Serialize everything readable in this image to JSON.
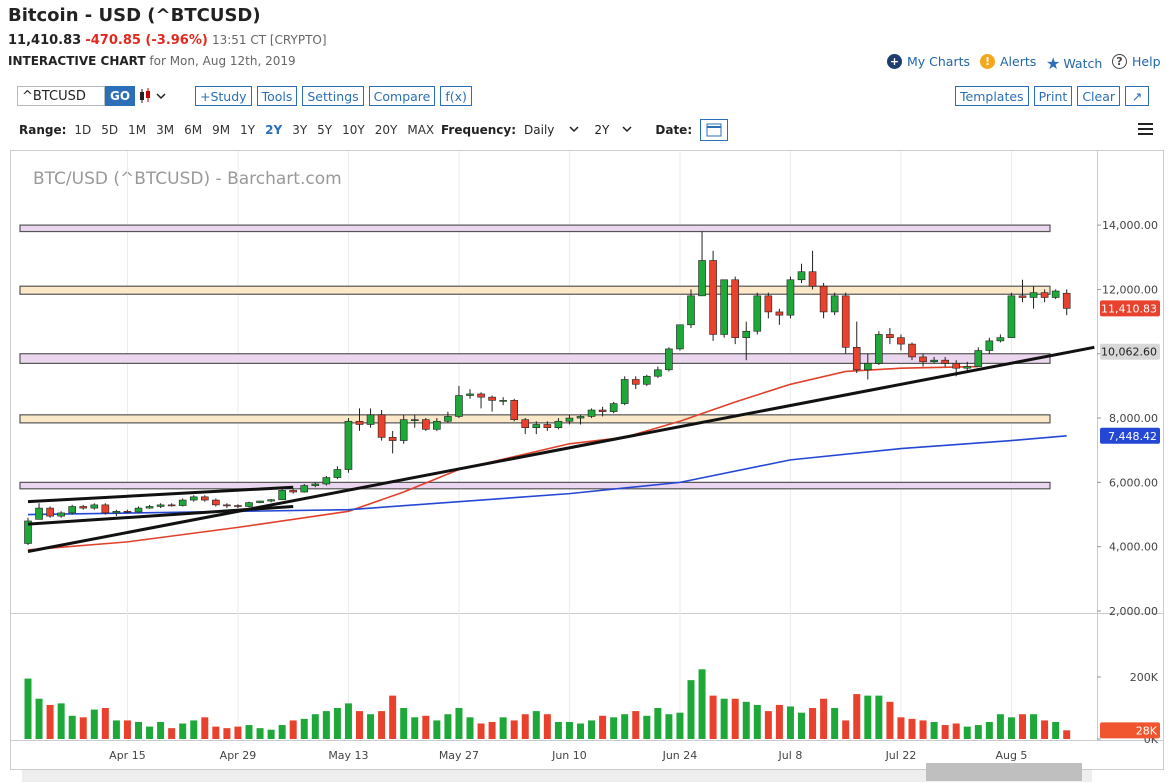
{
  "header": {
    "title": "Bitcoin - USD (^BTCUSD)",
    "price": "11,410.83",
    "change": "-470.85 (-3.96%)",
    "time": "13:51 CT [CRYPTO]",
    "chart_label": "INTERACTIVE CHART",
    "date_text": "for Mon, Aug 12th, 2019",
    "links": [
      "My Charts",
      "Alerts",
      "Watch",
      "Help"
    ]
  },
  "toolbar": {
    "symbol": "^BTCUSD",
    "go": "GO",
    "buttons": [
      "+Study",
      "Tools",
      "Settings",
      "Compare",
      "f(x)"
    ],
    "right_buttons": [
      "Templates",
      "Print",
      "Clear"
    ]
  },
  "range_bar": {
    "range_label": "Range:",
    "ranges": [
      "1D",
      "5D",
      "1M",
      "3M",
      "6M",
      "9M",
      "1Y",
      "2Y",
      "3Y",
      "5Y",
      "10Y",
      "20Y",
      "MAX"
    ],
    "selected_range": 7,
    "frequency_label": "Frequency:",
    "frequency": "Daily",
    "period": "2Y",
    "date_label": "Date:"
  },
  "chart_data": {
    "type": "candlestick",
    "title": "BTC/USD (^BTCUSD) - Barchart.com",
    "categories": [
      null,
      null,
      null,
      null,
      null,
      null,
      null,
      null,
      null,
      "Apr 15",
      null,
      null,
      null,
      null,
      null,
      null,
      null,
      null,
      null,
      "Apr 29",
      null,
      null,
      null,
      null,
      null,
      null,
      null,
      null,
      null,
      "May 13",
      null,
      null,
      null,
      null,
      null,
      null,
      null,
      null,
      null,
      "May 27",
      null,
      null,
      null,
      null,
      null,
      null,
      null,
      null,
      null,
      "Jun 10",
      null,
      null,
      null,
      null,
      null,
      null,
      null,
      null,
      null,
      "Jun 24",
      null,
      null,
      null,
      null,
      null,
      null,
      null,
      null,
      null,
      "Jul 8",
      null,
      null,
      null,
      null,
      null,
      null,
      null,
      null,
      null,
      "Jul 22",
      null,
      null,
      null,
      null,
      null,
      null,
      null,
      null,
      null,
      "Aug 5",
      null,
      null,
      null,
      null,
      null
    ],
    "ohlc": [
      [
        4100,
        4900,
        4050,
        4800
      ],
      [
        4850,
        5350,
        4850,
        5200
      ],
      [
        5200,
        5250,
        4900,
        4950
      ],
      [
        4950,
        5100,
        4900,
        5050
      ],
      [
        5050,
        5300,
        5000,
        5250
      ],
      [
        5250,
        5300,
        5150,
        5200
      ],
      [
        5200,
        5350,
        5150,
        5300
      ],
      [
        5300,
        5350,
        5000,
        5050
      ],
      [
        5050,
        5150,
        4950,
        5100
      ],
      [
        5100,
        5150,
        5050,
        5080
      ],
      [
        5080,
        5250,
        5050,
        5200
      ],
      [
        5200,
        5300,
        5180,
        5250
      ],
      [
        5250,
        5350,
        5200,
        5300
      ],
      [
        5300,
        5350,
        5250,
        5280
      ],
      [
        5280,
        5500,
        5250,
        5450
      ],
      [
        5450,
        5600,
        5400,
        5550
      ],
      [
        5550,
        5600,
        5400,
        5450
      ],
      [
        5450,
        5500,
        5250,
        5300
      ],
      [
        5300,
        5350,
        5200,
        5280
      ],
      [
        5280,
        5320,
        5200,
        5250
      ],
      [
        5250,
        5400,
        5230,
        5370
      ],
      [
        5370,
        5430,
        5350,
        5420
      ],
      [
        5420,
        5480,
        5380,
        5460
      ],
      [
        5460,
        5800,
        5450,
        5750
      ],
      [
        5750,
        5800,
        5650,
        5700
      ],
      [
        5700,
        5950,
        5680,
        5900
      ],
      [
        5900,
        6000,
        5850,
        5950
      ],
      [
        5950,
        6200,
        5900,
        6150
      ],
      [
        6150,
        6500,
        6100,
        6400
      ],
      [
        6400,
        8000,
        6300,
        7900
      ],
      [
        7900,
        8300,
        7600,
        7800
      ],
      [
        7800,
        8300,
        7700,
        8100
      ],
      [
        8100,
        8250,
        7300,
        7400
      ],
      [
        7400,
        7600,
        6900,
        7300
      ],
      [
        7300,
        8100,
        7200,
        7950
      ],
      [
        7950,
        8100,
        7700,
        7950
      ],
      [
        7950,
        8000,
        7600,
        7650
      ],
      [
        7650,
        8000,
        7600,
        7900
      ],
      [
        7900,
        8200,
        7850,
        8050
      ],
      [
        8050,
        9000,
        8000,
        8700
      ],
      [
        8700,
        8900,
        8600,
        8750
      ],
      [
        8750,
        8800,
        8300,
        8650
      ],
      [
        8650,
        8700,
        8200,
        8550
      ],
      [
        8550,
        8650,
        8400,
        8550
      ],
      [
        8550,
        8600,
        7900,
        7950
      ],
      [
        7950,
        8000,
        7500,
        7700
      ],
      [
        7700,
        7900,
        7500,
        7800
      ],
      [
        7800,
        7900,
        7600,
        7700
      ],
      [
        7700,
        8000,
        7650,
        7900
      ],
      [
        7900,
        8100,
        7800,
        8000
      ],
      [
        8000,
        8100,
        7800,
        8050
      ],
      [
        8050,
        8300,
        8000,
        8250
      ],
      [
        8250,
        8350,
        8050,
        8200
      ],
      [
        8200,
        8500,
        8150,
        8450
      ],
      [
        8450,
        9300,
        8400,
        9200
      ],
      [
        9200,
        9300,
        8900,
        9050
      ],
      [
        9050,
        9350,
        9000,
        9300
      ],
      [
        9300,
        9600,
        9250,
        9500
      ],
      [
        9500,
        10200,
        9450,
        10150
      ],
      [
        10150,
        10900,
        10100,
        10900
      ],
      [
        10900,
        12000,
        10800,
        11800
      ],
      [
        11800,
        13800,
        11800,
        12900
      ],
      [
        12900,
        13200,
        10400,
        10600
      ],
      [
        10600,
        12300,
        10500,
        12300
      ],
      [
        12300,
        12400,
        10300,
        10500
      ],
      [
        10500,
        11000,
        9800,
        10700
      ],
      [
        10700,
        11900,
        10600,
        11800
      ],
      [
        11800,
        11900,
        11100,
        11300
      ],
      [
        11300,
        11400,
        10900,
        11200
      ],
      [
        11200,
        12400,
        11100,
        12300
      ],
      [
        12300,
        12800,
        12200,
        12550
      ],
      [
        12550,
        13200,
        12000,
        12100
      ],
      [
        12100,
        12200,
        11100,
        11300
      ],
      [
        11300,
        11900,
        11200,
        11800
      ],
      [
        11800,
        11900,
        10000,
        10200
      ],
      [
        10200,
        11000,
        9400,
        9500
      ],
      [
        9500,
        10000,
        9200,
        9700
      ],
      [
        9700,
        10700,
        9650,
        10600
      ],
      [
        10600,
        10800,
        10300,
        10500
      ],
      [
        10500,
        10600,
        10100,
        10300
      ],
      [
        10300,
        10350,
        9800,
        9900
      ],
      [
        9900,
        10000,
        9600,
        9750
      ],
      [
        9750,
        9900,
        9700,
        9800
      ],
      [
        9800,
        9900,
        9600,
        9700
      ],
      [
        9700,
        9800,
        9300,
        9550
      ],
      [
        9550,
        9750,
        9450,
        9600
      ],
      [
        9600,
        10200,
        9600,
        10100
      ],
      [
        10100,
        10500,
        10000,
        10400
      ],
      [
        10400,
        10600,
        10350,
        10500
      ],
      [
        10500,
        11900,
        10500,
        11800
      ],
      [
        11800,
        12300,
        11600,
        11750
      ],
      [
        11750,
        12100,
        11400,
        11900
      ],
      [
        11900,
        12000,
        11600,
        11750
      ],
      [
        11750,
        12000,
        11700,
        11950
      ],
      [
        11881.68,
        12000,
        11200,
        11410.83
      ]
    ],
    "up_color": "#1fa83a",
    "down_color": "#e8412d",
    "ylim": [
      2000,
      16180
    ],
    "yticks": [
      {
        "value": 2000,
        "label": "2,000.00"
      },
      {
        "value": 4000,
        "label": "4,000.00"
      },
      {
        "value": 6000,
        "label": "6,000.00"
      },
      {
        "value": 8000,
        "label": "8,000.00"
      },
      {
        "value": 10000,
        "label": "10,000.00"
      },
      {
        "value": 12000,
        "label": "12,000.00"
      },
      {
        "value": 14000,
        "label": "14,000.00"
      }
    ],
    "zones": [
      {
        "low": 13800,
        "high": 14000,
        "color": "#ead6ee"
      },
      {
        "low": 11850,
        "high": 12100,
        "color": "#fbe8c8"
      },
      {
        "low": 9700,
        "high": 10000,
        "color": "#ead6ee"
      },
      {
        "low": 7850,
        "high": 8100,
        "color": "#fbe8c8"
      },
      {
        "low": 5800,
        "high": 6000,
        "color": "#ead6ee"
      }
    ],
    "lines": [
      {
        "color": "#e0412a",
        "x": [
          0,
          9,
          19,
          29,
          34,
          39,
          49,
          54,
          59,
          64,
          69,
          74,
          79,
          86
        ],
        "values": [
          3900,
          4150,
          4600,
          5100,
          5700,
          6400,
          7200,
          7400,
          7900,
          8500,
          9050,
          9450,
          9550,
          9600
        ]
      },
      {
        "color": "#2447d6",
        "x": [
          0,
          29,
          49,
          59,
          69,
          79,
          89,
          94
        ],
        "values": [
          5000,
          5150,
          5650,
          6000,
          6700,
          7050,
          7300,
          7448.42
        ]
      }
    ],
    "trendlines": [
      {
        "color": "#111111",
        "x": [
          0,
          96.5
        ],
        "values": [
          3850,
          10200
        ]
      },
      {
        "color": "#111111",
        "x": [
          0,
          24
        ],
        "values": [
          4700,
          5250
        ]
      },
      {
        "color": "#111111",
        "x": [
          0,
          24
        ],
        "values": [
          5400,
          5850
        ]
      }
    ],
    "badges": [
      {
        "value": 11410.83,
        "label": "11,410.83",
        "color": "#e8412d"
      },
      {
        "value": 10062.6,
        "label": "10,062.60",
        "color": "#d8d8d8"
      },
      {
        "value": 7448.42,
        "label": "7,448.42",
        "color": "#2447d6"
      }
    ],
    "volume": {
      "values": [
        195,
        130,
        110,
        115,
        75,
        70,
        95,
        100,
        60,
        60,
        55,
        40,
        55,
        35,
        50,
        60,
        70,
        40,
        35,
        40,
        45,
        35,
        30,
        45,
        60,
        65,
        80,
        90,
        100,
        115,
        90,
        80,
        90,
        140,
        100,
        70,
        75,
        60,
        80,
        100,
        70,
        50,
        55,
        70,
        60,
        80,
        90,
        80,
        55,
        55,
        50,
        60,
        75,
        70,
        80,
        90,
        75,
        100,
        80,
        85,
        190,
        225,
        140,
        130,
        130,
        120,
        110,
        90,
        110,
        105,
        85,
        100,
        130,
        100,
        60,
        145,
        140,
        140,
        120,
        70,
        65,
        60,
        55,
        45,
        50,
        40,
        45,
        55,
        80,
        70,
        80,
        80,
        60,
        55,
        28
      ],
      "ylim": [
        0,
        397
      ],
      "yticks": [
        {
          "value": 0,
          "label": "0K"
        },
        {
          "value": 200,
          "label": "200K"
        }
      ],
      "badge": {
        "value": 28,
        "label": "28K",
        "color": "#f0552f"
      }
    }
  }
}
